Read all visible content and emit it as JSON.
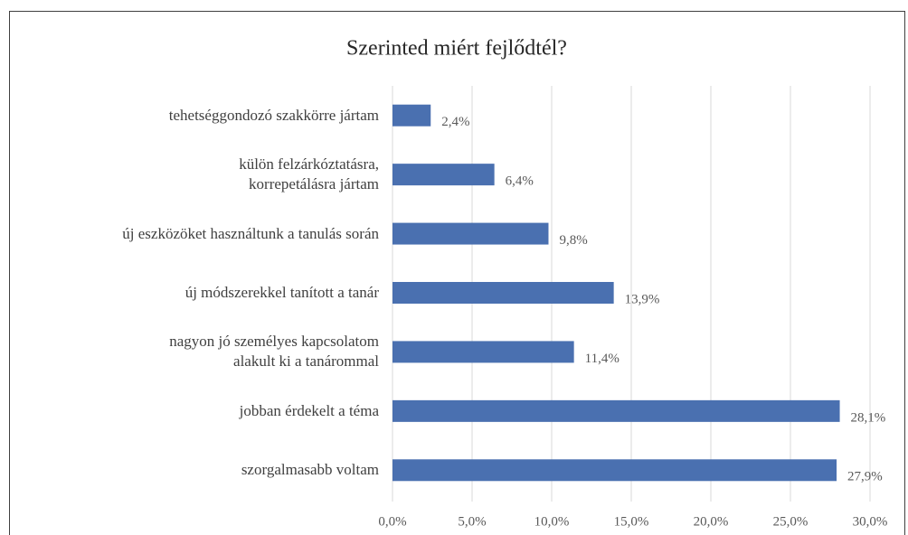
{
  "chart_data": {
    "type": "bar",
    "orientation": "horizontal",
    "title": "Szerinted miért fejlődtél?",
    "categories": [
      "tehetséggondozó szakkörre jártam",
      "külön felzárkóztatásra,\nkorrepetálásra jártam",
      "új eszközöket használtunk a tanulás során",
      "új módszerekkel tanított a tanár",
      "nagyon jó személyes kapcsolatom\nalakult ki a tanárommal",
      "jobban érdekelt a téma",
      "szorgalmasabb voltam"
    ],
    "values": [
      2.4,
      6.4,
      9.8,
      13.9,
      11.4,
      28.1,
      27.9
    ],
    "value_labels": [
      "2,4%",
      "6,4%",
      "9,8%",
      "13,9%",
      "11,4%",
      "28,1%",
      "27,9%"
    ],
    "color": "#4a70b0",
    "xlim": [
      0,
      30
    ],
    "xticks": [
      {
        "value": 0,
        "label": "0,0%"
      },
      {
        "value": 5,
        "label": "5,0%"
      },
      {
        "value": 10,
        "label": "10,0%"
      },
      {
        "value": 15,
        "label": "15,0%"
      },
      {
        "value": 20,
        "label": "20,0%"
      },
      {
        "value": 25,
        "label": "25,0%"
      },
      {
        "value": 30,
        "label": "30,0%"
      }
    ],
    "grid": true
  }
}
